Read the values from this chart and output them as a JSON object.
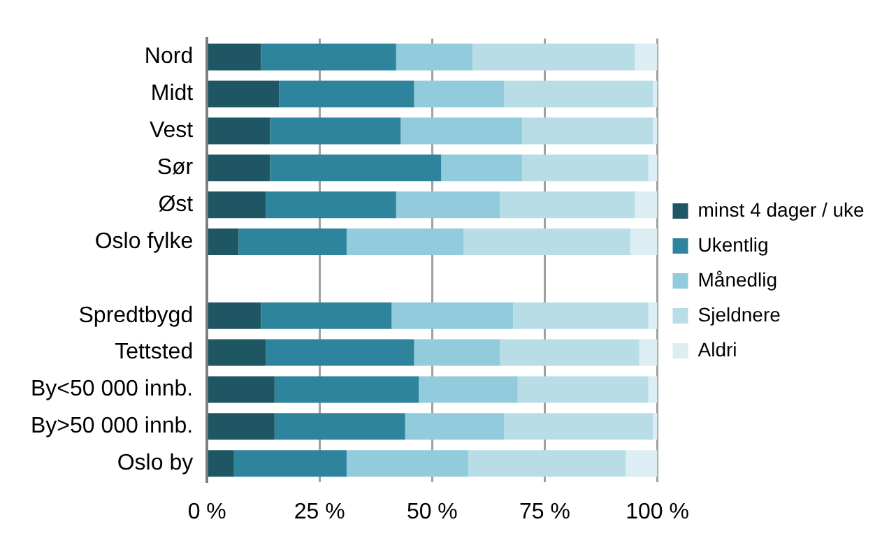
{
  "chart_data": {
    "type": "bar",
    "orientation": "horizontal",
    "stacked": true,
    "categories": [
      "Nord",
      "Midt",
      "Vest",
      "Sør",
      "Øst",
      "Oslo fylke",
      null,
      "Spredtbygd",
      "Tettsted",
      "By<50 000 innb.",
      "By>50 000 innb.",
      "Oslo by"
    ],
    "series": [
      {
        "name": "minst 4 dager / uke",
        "color": "#1f5663",
        "values": [
          12,
          16,
          14,
          14,
          13,
          7,
          null,
          12,
          13,
          15,
          15,
          6
        ]
      },
      {
        "name": "Ukentlig",
        "color": "#2e849c",
        "values": [
          30,
          30,
          29,
          38,
          29,
          24,
          null,
          29,
          33,
          32,
          29,
          25
        ]
      },
      {
        "name": "Månedlig",
        "color": "#92cbdc",
        "values": [
          17,
          20,
          27,
          18,
          23,
          26,
          null,
          27,
          19,
          22,
          22,
          27
        ]
      },
      {
        "name": "Sjeldnere",
        "color": "#b8dde7",
        "values": [
          36,
          33,
          29,
          28,
          30,
          37,
          null,
          30,
          31,
          29,
          33,
          35
        ]
      },
      {
        "name": "Aldri",
        "color": "#dcedf3",
        "values": [
          5,
          1,
          1,
          2,
          5,
          6,
          null,
          2,
          4,
          2,
          1,
          7
        ]
      }
    ],
    "xlim": [
      0,
      100
    ],
    "xticks": [
      {
        "value": 0,
        "label": "0 %"
      },
      {
        "value": 25,
        "label": "25 %"
      },
      {
        "value": 50,
        "label": "50 %"
      },
      {
        "value": 75,
        "label": "75 %"
      },
      {
        "value": 100,
        "label": "100 %"
      }
    ],
    "grid": "x",
    "legend": "right"
  }
}
